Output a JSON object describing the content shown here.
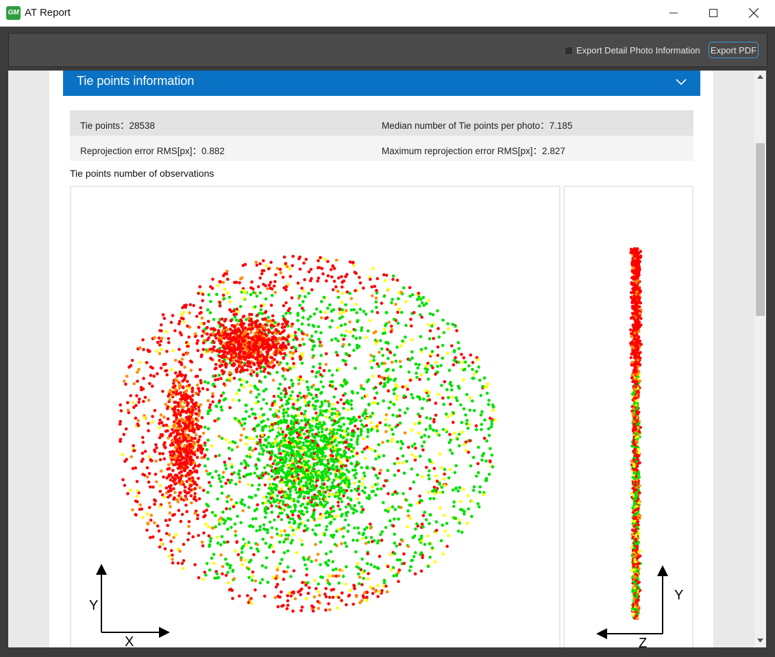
{
  "window": {
    "icon_text": "GM",
    "title": "AT Report"
  },
  "toolbar": {
    "checkbox_label": "Export Detail Photo Information",
    "export_button": "Export PDF"
  },
  "section": {
    "title": "Tie points information"
  },
  "stats": {
    "tie_points": "Tie points：28538",
    "median_per_photo": "Median number of Tie points per photo：7.185",
    "reprojection_rms": "Reprojection error RMS[px]：0.882",
    "max_reprojection_rms": "Maximum reprojection error RMS[px]：2.827"
  },
  "plot": {
    "title": "Tie points number of observations",
    "main_axes": {
      "vertical": "Y",
      "horizontal": "X"
    },
    "side_axes": {
      "vertical": "Y",
      "horizontal": "Z"
    },
    "colors": [
      "#ff0000",
      "#e81010",
      "#ff8c00",
      "#ffff00",
      "#00e000"
    ]
  }
}
